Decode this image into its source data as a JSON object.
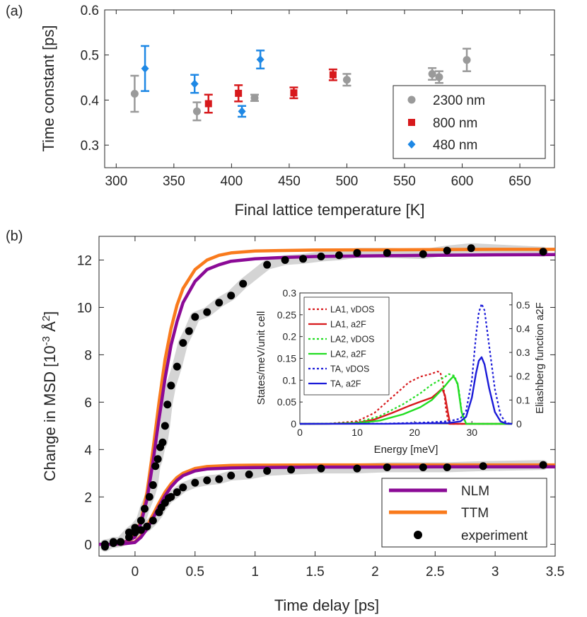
{
  "colors": {
    "gray": "#9a9a9a",
    "red": "#d7191c",
    "blue": "#1e88e5",
    "purple": "#8b0a96",
    "orange": "#f97a1c",
    "band": "#d4d4d4",
    "black": "#000000",
    "green": "#22dd22",
    "dblue": "#1a1ad8"
  },
  "chart_data": [
    {
      "id": "a",
      "panel_label": "(a)",
      "type": "scatter",
      "xlabel": "Final lattice temperature [K]",
      "ylabel": "Time constant [ps]",
      "xlim": [
        290,
        680
      ],
      "ylim": [
        0.25,
        0.6
      ],
      "xticks": [
        "300",
        "350",
        "400",
        "450",
        "500",
        "550",
        "600",
        "650"
      ],
      "yticks": [
        "0.3",
        "0.4",
        "0.5",
        "0.6"
      ],
      "legend_position": "bottom-right",
      "series": [
        {
          "name": "2300 nm",
          "marker": "circle",
          "color": "gray",
          "points": [
            {
              "x": 316,
              "y": 0.414,
              "err": 0.04
            },
            {
              "x": 370,
              "y": 0.375,
              "err": 0.02
            },
            {
              "x": 420,
              "y": 0.405,
              "err": 0.007
            },
            {
              "x": 500,
              "y": 0.445,
              "err": 0.013
            },
            {
              "x": 574,
              "y": 0.458,
              "err": 0.013
            },
            {
              "x": 580,
              "y": 0.451,
              "err": 0.013
            },
            {
              "x": 604,
              "y": 0.489,
              "err": 0.025
            }
          ]
        },
        {
          "name": "800 nm",
          "marker": "square",
          "color": "red",
          "points": [
            {
              "x": 380,
              "y": 0.392,
              "err": 0.02
            },
            {
              "x": 406,
              "y": 0.415,
              "err": 0.018
            },
            {
              "x": 454,
              "y": 0.416,
              "err": 0.012
            },
            {
              "x": 488,
              "y": 0.456,
              "err": 0.012
            }
          ]
        },
        {
          "name": "480 nm",
          "marker": "diamond",
          "color": "blue",
          "points": [
            {
              "x": 325,
              "y": 0.47,
              "err": 0.05
            },
            {
              "x": 368,
              "y": 0.436,
              "err": 0.02
            },
            {
              "x": 409,
              "y": 0.375,
              "err": 0.012
            },
            {
              "x": 425,
              "y": 0.49,
              "err": 0.02
            }
          ]
        }
      ]
    },
    {
      "id": "b",
      "panel_label": "(b)",
      "type": "line",
      "xlabel": "Time delay [ps]",
      "ylabel_prefix": "Change in MSD [10",
      "ylabel_exp": "-3",
      "ylabel_unit": " Å",
      "ylabel_exp2": "2",
      "ylabel_suffix": "]",
      "xlim": [
        -0.3,
        3.5
      ],
      "ylim": [
        -0.5,
        13
      ],
      "xticks": [
        "0",
        "0.5",
        "1",
        "1.5",
        "2",
        "2.5",
        "3",
        "3.5"
      ],
      "yticks": [
        "0",
        "2",
        "4",
        "6",
        "8",
        "10",
        "12"
      ],
      "legend_position": "bottom-right",
      "legend": [
        {
          "name": "NLM",
          "style": "line",
          "color": "purple"
        },
        {
          "name": "TTM",
          "style": "line",
          "color": "orange"
        },
        {
          "name": "experiment",
          "style": "dot",
          "color": "black"
        }
      ],
      "series": [
        {
          "name": "TTM (upper)",
          "color": "orange",
          "x": [
            -0.3,
            -0.2,
            -0.1,
            0.0,
            0.05,
            0.1,
            0.15,
            0.2,
            0.25,
            0.3,
            0.35,
            0.4,
            0.5,
            0.6,
            0.7,
            0.8,
            1.0,
            1.2,
            1.5,
            2.0,
            2.5,
            3.0,
            3.5
          ],
          "y": [
            0.0,
            0.0,
            0.05,
            0.35,
            1.0,
            2.2,
            4.0,
            6.0,
            7.8,
            9.1,
            10.1,
            10.8,
            11.6,
            12.0,
            12.2,
            12.3,
            12.38,
            12.4,
            12.42,
            12.43,
            12.44,
            12.45,
            12.45
          ]
        },
        {
          "name": "NLM (upper)",
          "color": "purple",
          "x": [
            -0.3,
            -0.2,
            -0.1,
            0.0,
            0.05,
            0.1,
            0.15,
            0.2,
            0.25,
            0.3,
            0.35,
            0.4,
            0.5,
            0.6,
            0.7,
            0.8,
            1.0,
            1.2,
            1.5,
            2.0,
            2.5,
            3.0,
            3.5
          ],
          "y": [
            0.0,
            0.0,
            0.05,
            0.3,
            0.9,
            1.9,
            3.5,
            5.3,
            7.0,
            8.4,
            9.4,
            10.2,
            11.1,
            11.6,
            11.8,
            11.95,
            12.05,
            12.1,
            12.15,
            12.18,
            12.2,
            12.22,
            12.23
          ]
        },
        {
          "name": "TTM (lower)",
          "color": "orange",
          "x": [
            -0.3,
            -0.2,
            -0.1,
            0.0,
            0.05,
            0.1,
            0.15,
            0.2,
            0.25,
            0.3,
            0.35,
            0.4,
            0.5,
            0.6,
            0.8,
            1.0,
            1.5,
            2.0,
            2.5,
            3.0,
            3.5
          ],
          "y": [
            0.0,
            0.0,
            0.02,
            0.1,
            0.35,
            0.75,
            1.25,
            1.75,
            2.2,
            2.55,
            2.82,
            3.0,
            3.2,
            3.28,
            3.33,
            3.34,
            3.35,
            3.35,
            3.35,
            3.35,
            3.35
          ]
        },
        {
          "name": "NLM (lower)",
          "color": "purple",
          "x": [
            -0.3,
            -0.2,
            -0.1,
            0.0,
            0.05,
            0.1,
            0.15,
            0.2,
            0.25,
            0.3,
            0.35,
            0.4,
            0.5,
            0.6,
            0.8,
            1.0,
            1.5,
            2.0,
            2.5,
            3.0,
            3.5
          ],
          "y": [
            0.0,
            0.0,
            0.02,
            0.08,
            0.3,
            0.65,
            1.1,
            1.6,
            2.05,
            2.42,
            2.7,
            2.9,
            3.1,
            3.18,
            3.22,
            3.24,
            3.26,
            3.26,
            3.27,
            3.27,
            3.27
          ]
        },
        {
          "name": "experiment (upper)",
          "color": "black",
          "x": [
            -0.25,
            -0.18,
            -0.12,
            -0.05,
            0.0,
            0.05,
            0.08,
            0.12,
            0.15,
            0.17,
            0.19,
            0.21,
            0.23,
            0.25,
            0.27,
            0.3,
            0.35,
            0.4,
            0.45,
            0.5,
            0.6,
            0.7,
            0.8,
            0.9,
            1.1,
            1.25,
            1.4,
            1.55,
            1.7,
            1.85,
            2.1,
            2.4,
            2.6,
            2.8,
            3.4
          ],
          "y": [
            -0.1,
            0.1,
            0.1,
            0.5,
            0.7,
            1.0,
            1.5,
            2.0,
            2.5,
            3.3,
            3.6,
            4.1,
            4.3,
            5.0,
            5.9,
            6.7,
            7.5,
            8.5,
            9.0,
            9.6,
            9.8,
            10.2,
            10.5,
            11.0,
            11.8,
            12.0,
            12.05,
            12.15,
            12.2,
            12.3,
            12.3,
            12.25,
            12.4,
            12.5,
            12.35
          ]
        },
        {
          "name": "experiment (lower)",
          "color": "black",
          "x": [
            -0.25,
            -0.18,
            -0.12,
            -0.05,
            0.0,
            0.05,
            0.1,
            0.15,
            0.2,
            0.22,
            0.25,
            0.28,
            0.3,
            0.35,
            0.4,
            0.5,
            0.6,
            0.7,
            0.8,
            0.95,
            1.1,
            1.3,
            1.55,
            1.85,
            2.1,
            2.4,
            2.6,
            2.9,
            3.4
          ],
          "y": [
            0.0,
            0.05,
            0.1,
            0.3,
            0.5,
            0.6,
            0.75,
            1.0,
            1.35,
            1.55,
            1.75,
            1.95,
            2.0,
            2.2,
            2.4,
            2.6,
            2.7,
            2.75,
            2.9,
            2.95,
            3.1,
            3.15,
            3.2,
            3.2,
            3.25,
            3.25,
            3.25,
            3.3,
            3.35
          ]
        }
      ],
      "inset": {
        "type": "line",
        "xlabel": "Energy [meV]",
        "ylabel_left": "States/meV/unit cell",
        "ylabel_right": "Eliashberg function a2F",
        "xlim": [
          0,
          37
        ],
        "ylim_left": [
          0,
          0.3
        ],
        "ylim_right": [
          0,
          0.55
        ],
        "xticks": [
          "0",
          "10",
          "20",
          "30"
        ],
        "yticks_left": [
          "0",
          "0.05",
          "0.1",
          "0.15",
          "0.2",
          "0.25",
          "0.3"
        ],
        "yticks_right": [
          "0",
          "0.1",
          "0.2",
          "0.3",
          "0.4",
          "0.5"
        ],
        "legend_position": "top-left",
        "series": [
          {
            "name": "LA1, vDOS",
            "color": "red",
            "dash": true,
            "x": [
              0,
              5,
              10,
              13,
              16,
              19,
              21,
              23,
              24,
              24.5,
              25,
              25.5,
              26,
              28,
              37
            ],
            "y": [
              0,
              0.0005,
              0.006,
              0.025,
              0.06,
              0.095,
              0.108,
              0.115,
              0.12,
              0.118,
              0.09,
              0.03,
              0.0,
              0.0,
              0.0
            ]
          },
          {
            "name": "LA1, a2F",
            "color": "red",
            "dash": false,
            "x": [
              0,
              5,
              10,
              13,
              16,
              19,
              21,
              23,
              24,
              24.8,
              25.3,
              25.8,
              26.2,
              28,
              37
            ],
            "y": [
              0,
              0.0003,
              0.004,
              0.018,
              0.045,
              0.075,
              0.093,
              0.11,
              0.13,
              0.148,
              0.12,
              0.05,
              0.0,
              0.0,
              0.0
            ]
          },
          {
            "name": "LA2, vDOS",
            "color": "green",
            "dash": true,
            "x": [
              0,
              5,
              10,
              14,
              18,
              21,
              23,
              25,
              26,
              27,
              27.7,
              28.3,
              29,
              37
            ],
            "y": [
              0,
              0.0003,
              0.003,
              0.018,
              0.045,
              0.07,
              0.09,
              0.105,
              0.114,
              0.11,
              0.08,
              0.02,
              0.0,
              0.0
            ]
          },
          {
            "name": "LA2, a2F",
            "color": "green",
            "dash": false,
            "x": [
              0,
              5,
              10,
              14,
              18,
              21,
              23,
              25,
              26,
              26.8,
              27.5,
              28.2,
              29,
              37
            ],
            "y": [
              0,
              0.0002,
              0.002,
              0.014,
              0.04,
              0.07,
              0.1,
              0.15,
              0.18,
              0.2,
              0.17,
              0.05,
              0.0,
              0.0
            ]
          },
          {
            "name": "TA, vDOS",
            "color": "dblue",
            "dash": true,
            "x": [
              0,
              15,
              22,
              26,
              28,
              29,
              30,
              30.7,
              31.2,
              31.7,
              32.2,
              33,
              34,
              35,
              36,
              37
            ],
            "y": [
              0,
              0.0005,
              0.003,
              0.006,
              0.012,
              0.03,
              0.1,
              0.2,
              0.255,
              0.275,
              0.26,
              0.18,
              0.08,
              0.02,
              0.002,
              0.0
            ]
          },
          {
            "name": "TA, a2F",
            "color": "dblue",
            "dash": false,
            "x": [
              0,
              15,
              22,
              26,
              28,
              29,
              30,
              30.7,
              31.2,
              31.7,
              32.2,
              33,
              34,
              35,
              36,
              37
            ],
            "y": [
              0,
              0.0003,
              0.002,
              0.004,
              0.01,
              0.03,
              0.11,
              0.21,
              0.265,
              0.28,
              0.25,
              0.15,
              0.05,
              0.01,
              0.001,
              0.0
            ]
          }
        ]
      }
    }
  ]
}
